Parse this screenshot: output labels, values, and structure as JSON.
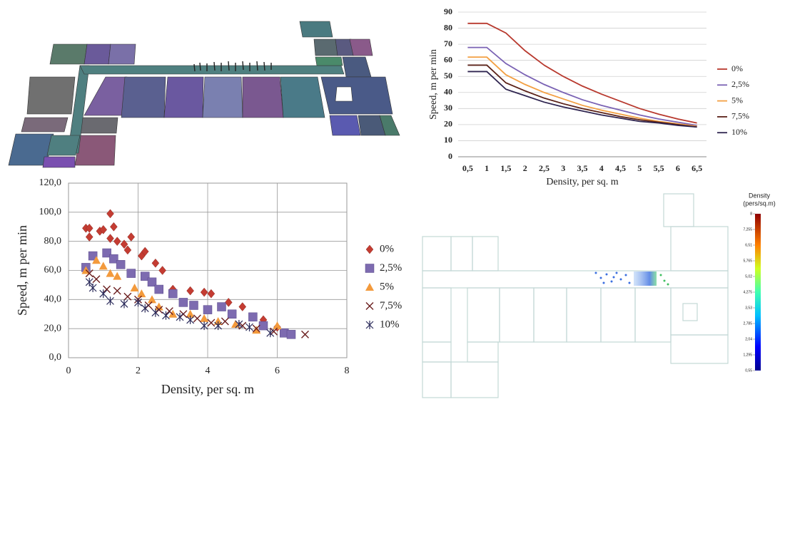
{
  "chart_data": [
    {
      "type": "line",
      "x_label": "Density, per sq. m",
      "y_label": "Speed, m per min",
      "categories": [
        "0,5",
        "1",
        "1,5",
        "2",
        "2,5",
        "3",
        "3,5",
        "4",
        "4,5",
        "5",
        "5,5",
        "6",
        "6,5"
      ],
      "ylim": [
        0,
        90
      ],
      "yticks": [
        0,
        10,
        20,
        30,
        40,
        50,
        60,
        70,
        80,
        90
      ],
      "grid": true,
      "legend": "right",
      "series": [
        {
          "name": "0%",
          "color": "#b8392e",
          "values": [
            83,
            83,
            77,
            66,
            57,
            50,
            44,
            39,
            34.5,
            30,
            26.5,
            23.5,
            21
          ]
        },
        {
          "name": "2,5%",
          "color": "#7a62b4",
          "values": [
            68,
            68,
            58,
            51,
            45,
            40,
            35.5,
            32,
            29,
            26,
            23.5,
            21.5,
            19.5
          ]
        },
        {
          "name": "5%",
          "color": "#f3a043",
          "values": [
            62,
            62,
            51,
            45,
            40,
            36,
            32,
            29,
            26.5,
            24,
            22,
            20.5,
            19
          ]
        },
        {
          "name": "7,5%",
          "color": "#5b2218",
          "values": [
            57,
            57,
            46,
            41,
            36.5,
            33,
            30,
            27.5,
            25,
            23,
            21.5,
            20,
            18.5
          ]
        },
        {
          "name": "10%",
          "color": "#2f2550",
          "values": [
            53,
            53,
            42,
            38,
            34,
            31,
            28.5,
            26,
            24,
            22,
            21,
            19.5,
            18.5
          ]
        }
      ]
    },
    {
      "type": "scatter",
      "x_label": "Density, per sq. m",
      "y_label": "Speed, m per min",
      "xlim": [
        0,
        8
      ],
      "xticks": [
        0,
        2,
        4,
        6,
        8
      ],
      "ylim": [
        0,
        120
      ],
      "yticks": [
        {
          "value": 0,
          "label": "0,0"
        },
        {
          "value": 20,
          "label": "20,0"
        },
        {
          "value": 40,
          "label": "40,0"
        },
        {
          "value": 60,
          "label": "60,0"
        },
        {
          "value": 80,
          "label": "80,0"
        },
        {
          "value": 100,
          "label": "100,0"
        },
        {
          "value": 120,
          "label": "120,0"
        }
      ],
      "grid": true,
      "legend": "right",
      "series": [
        {
          "name": "0%",
          "color": "#c43c32",
          "marker": "diamond",
          "x": [
            0.5,
            0.6,
            0.6,
            0.9,
            1.0,
            1.2,
            1.3,
            1.2,
            1.4,
            1.6,
            1.7,
            1.8,
            2.1,
            2.2,
            2.5,
            2.7,
            3.0,
            3.5,
            3.9,
            4.1,
            4.6,
            5.0,
            5.6,
            6.0
          ],
          "values": [
            89,
            89,
            83,
            87,
            88,
            99,
            90,
            82,
            80,
            78,
            74,
            83,
            70,
            73,
            65,
            60,
            47,
            46,
            45,
            44,
            38,
            35,
            26,
            21
          ]
        },
        {
          "name": "2,5%",
          "color": "#7d6bb0",
          "marker": "square",
          "x": [
            0.5,
            0.7,
            1.1,
            1.3,
            1.5,
            1.8,
            2.2,
            2.4,
            2.6,
            3.0,
            3.3,
            3.6,
            4.0,
            4.4,
            4.7,
            5.3,
            5.6,
            6.2,
            6.4
          ],
          "values": [
            62,
            70,
            72,
            68,
            64,
            58,
            56,
            52,
            47,
            44,
            38,
            36,
            33,
            35,
            30,
            28,
            22,
            17,
            16
          ]
        },
        {
          "name": "5%",
          "color": "#f39a3c",
          "marker": "triangle",
          "x": [
            0.5,
            0.8,
            1.0,
            1.2,
            1.4,
            1.9,
            2.1,
            2.4,
            2.6,
            3.0,
            3.5,
            3.9,
            4.3,
            4.8,
            5.4,
            6.0
          ],
          "values": [
            60,
            67,
            63,
            58,
            56,
            48,
            44,
            40,
            35,
            30,
            30,
            27,
            25,
            23,
            19,
            22
          ]
        },
        {
          "name": "7,5%",
          "color": "#6b1e1e",
          "marker": "x",
          "x": [
            0.6,
            0.8,
            1.1,
            1.4,
            1.7,
            2.0,
            2.3,
            2.6,
            2.9,
            3.3,
            3.7,
            4.1,
            4.5,
            5.0,
            5.4,
            5.9,
            6.8
          ],
          "values": [
            58,
            54,
            47,
            46,
            42,
            40,
            36,
            33,
            32,
            30,
            27,
            24,
            25,
            22,
            20,
            18,
            16
          ]
        },
        {
          "name": "10%",
          "color": "#2a2a5a",
          "marker": "star",
          "x": [
            0.6,
            0.7,
            1.0,
            1.2,
            1.6,
            2.0,
            2.2,
            2.5,
            2.8,
            3.2,
            3.5,
            3.9,
            4.3,
            4.9,
            5.2,
            5.8
          ],
          "values": [
            52,
            48,
            44,
            39,
            37,
            38,
            34,
            31,
            29,
            28,
            26,
            22,
            22,
            23,
            21,
            17
          ]
        }
      ]
    },
    {
      "type": "heatmap",
      "title": "Density",
      "subtitle": "(pers/sq.m)",
      "colormap": "jet",
      "clim": [
        0.55,
        8
      ],
      "cticks": [
        {
          "value": 0.55,
          "label": "0,55"
        },
        {
          "value": 1.295,
          "label": "1,295"
        },
        {
          "value": 2.04,
          "label": "2,04"
        },
        {
          "value": 2.785,
          "label": "2,785"
        },
        {
          "value": 3.53,
          "label": "3,53"
        },
        {
          "value": 4.275,
          "label": "4,275"
        },
        {
          "value": 5.02,
          "label": "5,02"
        },
        {
          "value": 5.765,
          "label": "5,765"
        },
        {
          "value": 6.51,
          "label": "6,51"
        },
        {
          "value": 7.255,
          "label": "7,255"
        },
        8
      ]
    }
  ]
}
